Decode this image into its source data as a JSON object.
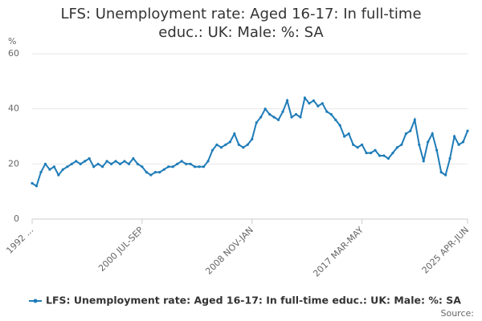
{
  "chart_data": {
    "type": "line",
    "title": "LFS: Unemployment rate: Aged 16-17: In full-time educ.: UK: Male: %: SA",
    "y_label": "%",
    "source_label": "Source:",
    "categories": [
      "1992 ...",
      null,
      null,
      null,
      null,
      null,
      null,
      null,
      null,
      null,
      null,
      null,
      null,
      null,
      null,
      null,
      null,
      null,
      null,
      null,
      null,
      null,
      null,
      null,
      null,
      "2000 JUL-SEP",
      null,
      null,
      null,
      null,
      null,
      null,
      null,
      null,
      null,
      null,
      null,
      null,
      null,
      null,
      null,
      null,
      null,
      null,
      null,
      null,
      null,
      null,
      null,
      null,
      "2008 NOV-JAN",
      null,
      null,
      null,
      null,
      null,
      null,
      null,
      null,
      null,
      null,
      null,
      null,
      null,
      null,
      null,
      null,
      null,
      null,
      null,
      null,
      null,
      null,
      null,
      null,
      "2017 MAR-MAY",
      null,
      null,
      null,
      null,
      null,
      null,
      null,
      null,
      null,
      null,
      null,
      null,
      null,
      null,
      null,
      null,
      null,
      null,
      null,
      null,
      null,
      null,
      null,
      "2025 APR-JUN"
    ],
    "series": [
      {
        "name": "LFS: Unemployment rate: Aged 16-17: In full-time educ.: UK: Male: %: SA",
        "color": "#1f7cb8",
        "values": [
          13,
          12,
          17,
          20,
          18,
          19,
          16,
          18,
          19,
          20,
          21,
          20,
          21,
          22,
          19,
          20,
          19,
          21,
          20,
          21,
          20,
          21,
          20,
          22,
          20,
          19,
          17,
          16,
          17,
          17,
          18,
          19,
          19,
          20,
          21,
          20,
          20,
          19,
          19,
          19,
          21,
          25,
          27,
          26,
          27,
          28,
          31,
          27,
          26,
          27,
          29,
          35,
          37,
          40,
          38,
          37,
          36,
          39,
          43,
          37,
          38,
          37,
          44,
          42,
          43,
          41,
          42,
          39,
          38,
          36,
          34,
          30,
          31,
          27,
          26,
          27,
          24,
          24,
          25,
          23,
          23,
          22,
          24,
          26,
          27,
          31,
          32,
          36,
          27,
          21,
          28,
          31,
          25,
          17,
          16,
          22,
          30,
          27,
          28,
          32
        ]
      }
    ],
    "ylim": [
      0,
      60
    ],
    "yticks": [
      0,
      20,
      40,
      60
    ],
    "grid": true,
    "legend": "bottom"
  }
}
